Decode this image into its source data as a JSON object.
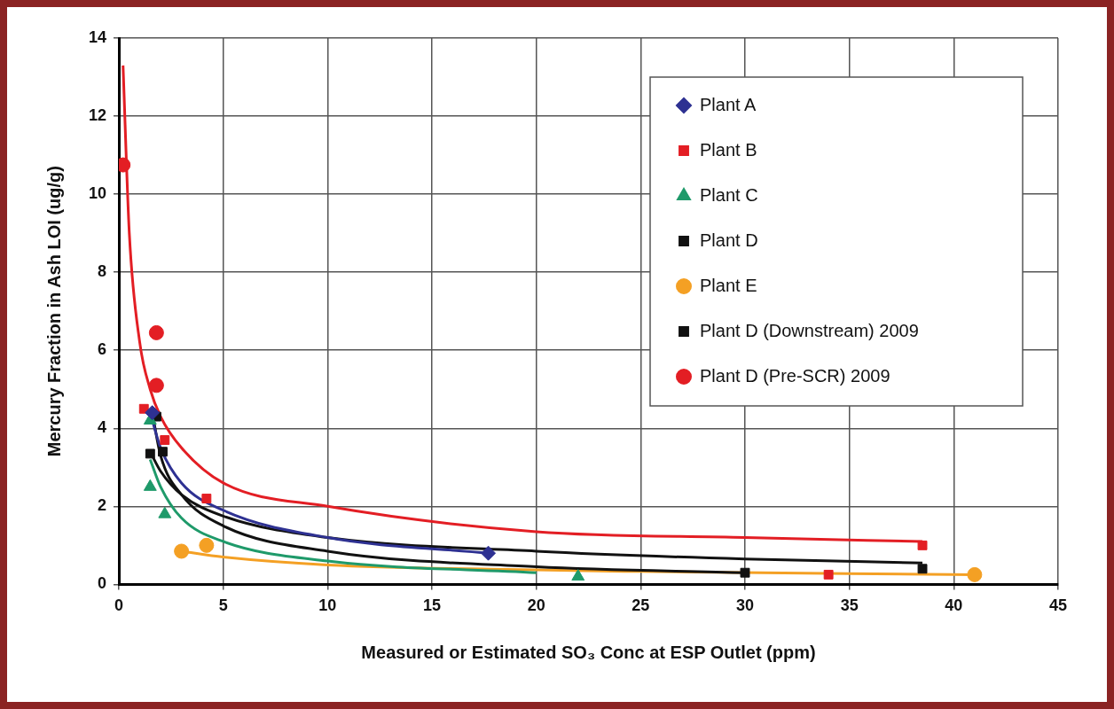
{
  "chart_data": {
    "type": "scatter",
    "xlabel": "Measured or Estimated SO₃ Conc at ESP Outlet (ppm)",
    "ylabel": "Mercury Fraction in Ash LOI (ug/g)",
    "xlim": [
      0,
      45
    ],
    "xticks": [
      0,
      5,
      10,
      15,
      20,
      25,
      30,
      35,
      40,
      45
    ],
    "ylim": [
      0,
      14
    ],
    "yticks": [
      0,
      2,
      4,
      6,
      8,
      10,
      12,
      14
    ],
    "grid": true,
    "legend": "top right",
    "series": [
      {
        "type": "line",
        "marker": "none",
        "color": "#e31e24",
        "x": [
          0.2,
          0.5,
          1,
          1.5,
          2,
          3,
          5,
          10,
          20,
          30,
          38.5
        ],
        "values": [
          13.3,
          9.0,
          6.2,
          5.0,
          4.3,
          3.5,
          2.6,
          2.0,
          1.35,
          1.2,
          1.1
        ]
      },
      {
        "type": "line",
        "marker": "none",
        "color": "#2e3192",
        "x": [
          1.5,
          2,
          3,
          5,
          10,
          17.7
        ],
        "values": [
          4.4,
          3.5,
          2.6,
          1.9,
          1.2,
          0.8
        ]
      },
      {
        "type": "line",
        "marker": "none",
        "color": "#111111",
        "x": [
          1.5,
          2,
          3,
          5,
          10,
          20,
          30,
          38.5
        ],
        "values": [
          3.4,
          2.9,
          2.3,
          1.75,
          1.2,
          0.85,
          0.65,
          0.55
        ]
      },
      {
        "type": "line",
        "marker": "none",
        "color": "#111111",
        "x": [
          1.6,
          2,
          3,
          5,
          10,
          20,
          30
        ],
        "values": [
          4.4,
          3.3,
          2.3,
          1.5,
          0.85,
          0.45,
          0.3
        ]
      },
      {
        "type": "line",
        "marker": "none",
        "color": "#1f9a6a",
        "x": [
          1.5,
          2,
          3,
          5,
          10,
          20
        ],
        "values": [
          3.2,
          2.5,
          1.7,
          1.1,
          0.6,
          0.3
        ]
      },
      {
        "type": "line",
        "marker": "none",
        "color": "#f4a024",
        "x": [
          3,
          5,
          10,
          20,
          25,
          41
        ],
        "values": [
          0.85,
          0.7,
          0.5,
          0.37,
          0.33,
          0.25
        ]
      },
      {
        "name": "Plant A",
        "marker": "diamond",
        "color": "#2e3192",
        "x": [
          1.6,
          17.7
        ],
        "values": [
          4.4,
          0.8
        ]
      },
      {
        "name": "Plant B",
        "marker": "square",
        "color": "#e31e24",
        "x": [
          1.2,
          2.2,
          4.2,
          34,
          38.5
        ],
        "values": [
          4.5,
          3.7,
          2.2,
          0.25,
          1.0
        ]
      },
      {
        "name": "Plant C",
        "marker": "triangle",
        "color": "#1f9a6a",
        "x": [
          1.5,
          1.5,
          2.2,
          22
        ],
        "values": [
          4.2,
          2.5,
          1.8,
          0.2
        ]
      },
      {
        "name": "Plant D",
        "marker": "square",
        "color": "#111111",
        "x": [
          1.8,
          2.1,
          30
        ],
        "values": [
          4.3,
          3.4,
          0.3
        ]
      },
      {
        "name": "Plant E",
        "marker": "circle",
        "color": "#f4a024",
        "x": [
          3.0,
          4.2,
          41
        ],
        "values": [
          0.85,
          1.0,
          0.25
        ]
      },
      {
        "name": "Plant D (Downstream) 2009",
        "marker": "square",
        "color": "#111111",
        "x": [
          1.5,
          38.5
        ],
        "values": [
          3.35,
          0.4
        ]
      },
      {
        "name": "Plant D (Pre-SCR) 2009",
        "marker": "circle",
        "color": "#e31e24",
        "x": [
          0.2,
          1.8,
          1.8
        ],
        "values": [
          10.75,
          6.45,
          5.1
        ]
      }
    ]
  }
}
